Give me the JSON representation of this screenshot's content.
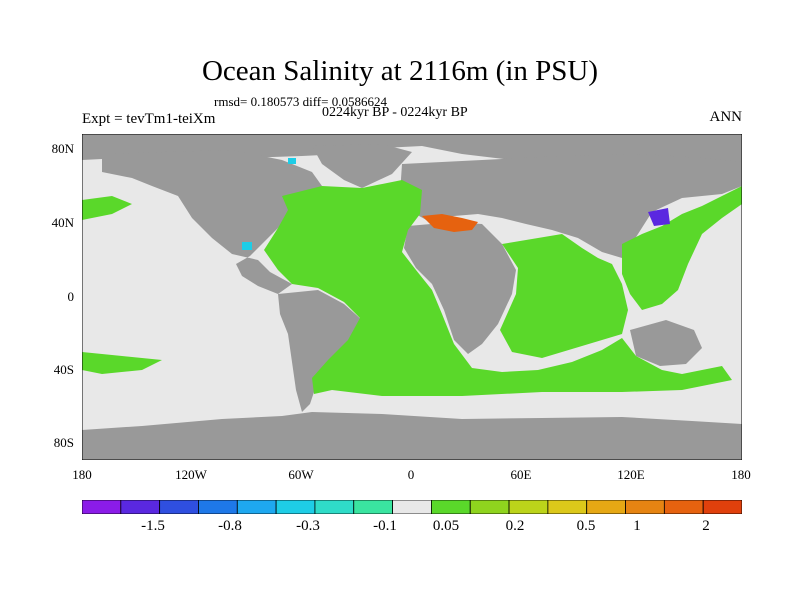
{
  "title": "Ocean Salinity at 2116m (in PSU)",
  "stats": "rmsd= 0.180573  diff= 0.0586624",
  "period": "0224kyr BP - 0224kyr BP",
  "expt": "Expt = tevTm1-teiXm",
  "season": "ANN",
  "lat_labels": [
    "80N",
    "40N",
    "0",
    "40S",
    "80S"
  ],
  "lon_labels": [
    "180",
    "120W",
    "60W",
    "0",
    "60E",
    "120E",
    "180"
  ],
  "colorbar": {
    "colors": [
      "#8b1ce8",
      "#5a28e0",
      "#2f4fe0",
      "#1e78e8",
      "#1ea8f0",
      "#1ecde6",
      "#2fdcc8",
      "#3ae4a0",
      "#e8e8e8",
      "#5ad82a",
      "#8fd41e",
      "#bcd41a",
      "#dcc81a",
      "#e6a814",
      "#e68412",
      "#e6620f",
      "#e0400c"
    ],
    "labels": [
      "-1.5",
      "-0.8",
      "-0.3",
      "-0.1",
      "0.05",
      "0.2",
      "0.5",
      "1",
      "2"
    ]
  },
  "legend_colors": {
    "land": "#999999",
    "no_data_ocean": "#e8e8e8",
    "small_positive": "#5ad82a"
  }
}
